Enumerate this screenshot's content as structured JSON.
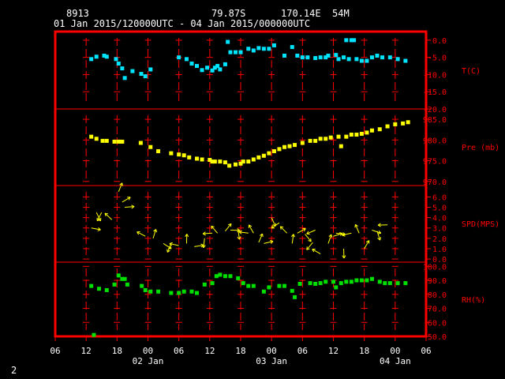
{
  "header": {
    "station": "8913",
    "lat": "79.87S",
    "lon": "170.14E",
    "elev": "54M",
    "time_range": "01 Jan 2015/120000UTC - 04 Jan 2015/000000UTC"
  },
  "page_number": "2",
  "colors": {
    "frame": "#ff0000",
    "text": "#ffffff",
    "temperature": "#00e5ff",
    "pressure": "#ffff00",
    "wind": "#ffff00",
    "humidity": "#00e000"
  },
  "chart_data": {
    "type": "scatter",
    "x_axis": {
      "unit": "hours from 01 Jan 2015 06 UTC",
      "range": [
        0,
        72
      ],
      "ticks": [
        "06",
        "12",
        "18",
        "00",
        "06",
        "12",
        "18",
        "00",
        "06",
        "12",
        "18",
        "00",
        "06"
      ],
      "day_labels": [
        "02 Jan",
        "03 Jan",
        "04 Jan"
      ],
      "grid": true
    },
    "panels": [
      {
        "name": "temperature",
        "label": "T(C)",
        "ylim": [
          -20,
          2.5
        ],
        "yticks": [
          "0.0",
          "-5.0",
          "-10.0",
          "-15.0",
          "-20.0"
        ],
        "ytick_values": [
          0,
          -5,
          -10,
          -15,
          -20
        ],
        "points": [
          [
            7,
            -5.5
          ],
          [
            8,
            -4.8
          ],
          [
            9.5,
            -4.5
          ],
          [
            10,
            -4.8
          ],
          [
            11.8,
            -5.5
          ],
          [
            12.3,
            -6.8
          ],
          [
            13,
            -8.2
          ],
          [
            13.5,
            -11
          ],
          [
            15,
            -9
          ],
          [
            16.7,
            -9.8
          ],
          [
            17.5,
            -10.5
          ],
          [
            18.5,
            -8.5
          ],
          [
            24,
            -5
          ],
          [
            25.5,
            -5.5
          ],
          [
            26.5,
            -6.8
          ],
          [
            27.5,
            -7.5
          ],
          [
            28.5,
            -8.7
          ],
          [
            29.5,
            -8
          ],
          [
            30.5,
            -8.8
          ],
          [
            31,
            -8
          ],
          [
            31.5,
            -7.5
          ],
          [
            32,
            -8.5
          ],
          [
            33,
            -7
          ],
          [
            33.5,
            -0.5
          ],
          [
            34,
            -3.5
          ],
          [
            35,
            -3.5
          ],
          [
            36,
            -3.5
          ],
          [
            37.5,
            -2.5
          ],
          [
            38.5,
            -3
          ],
          [
            39.5,
            -2.3
          ],
          [
            40.5,
            -2.5
          ],
          [
            41.5,
            -2.5
          ],
          [
            42.5,
            -1.5
          ],
          [
            44.5,
            -4.5
          ],
          [
            46,
            -2
          ],
          [
            47,
            -4.5
          ],
          [
            48,
            -5
          ],
          [
            49,
            -5
          ],
          [
            50.5,
            -5.2
          ],
          [
            51.5,
            -5
          ],
          [
            52.5,
            -5
          ],
          [
            53,
            -4.5
          ],
          [
            54.5,
            -4.3
          ],
          [
            55,
            -5.5
          ],
          [
            56,
            -5
          ],
          [
            56.5,
            0
          ],
          [
            57,
            -5.5
          ],
          [
            57.5,
            0
          ],
          [
            58,
            0
          ],
          [
            58.5,
            -5.5
          ],
          [
            59.5,
            -6
          ],
          [
            60.5,
            -6
          ],
          [
            61.5,
            -5
          ],
          [
            62.5,
            -4.5
          ],
          [
            63.5,
            -5
          ],
          [
            65,
            -5
          ],
          [
            66.5,
            -5.5
          ],
          [
            68,
            -6
          ]
        ]
      },
      {
        "name": "pressure",
        "label": "Pre (mb)",
        "ylim": [
          969,
          987.5
        ],
        "yticks": [
          "985.0",
          "980.0",
          "975.0",
          "970.0"
        ],
        "ytick_values": [
          985,
          980,
          975,
          970
        ],
        "points": [
          [
            7,
            980.8
          ],
          [
            8,
            980.3
          ],
          [
            9.2,
            979.8
          ],
          [
            10,
            979.8
          ],
          [
            11.5,
            979.6
          ],
          [
            12.3,
            979.6
          ],
          [
            13,
            979.6
          ],
          [
            16.6,
            979.3
          ],
          [
            18.5,
            978.3
          ],
          [
            20,
            977.3
          ],
          [
            22.5,
            976.8
          ],
          [
            24,
            976.5
          ],
          [
            25,
            976.3
          ],
          [
            26,
            975.8
          ],
          [
            27.5,
            975.5
          ],
          [
            28.5,
            975.3
          ],
          [
            30,
            975.2
          ],
          [
            30.5,
            974.8
          ],
          [
            31,
            974.8
          ],
          [
            32,
            974.8
          ],
          [
            33,
            974.6
          ],
          [
            33.8,
            973.8
          ],
          [
            35,
            974.1
          ],
          [
            36,
            974.3
          ],
          [
            36.5,
            974.8
          ],
          [
            37.5,
            974.8
          ],
          [
            38.5,
            975.3
          ],
          [
            39.5,
            975.8
          ],
          [
            40.5,
            976.2
          ],
          [
            41.5,
            976.8
          ],
          [
            42.5,
            977.3
          ],
          [
            43.5,
            977.8
          ],
          [
            44.5,
            978.3
          ],
          [
            45.5,
            978.5
          ],
          [
            46.5,
            978.8
          ],
          [
            48,
            979.3
          ],
          [
            49.5,
            979.8
          ],
          [
            50.5,
            979.8
          ],
          [
            51.5,
            980.3
          ],
          [
            52.5,
            980.3
          ],
          [
            53.5,
            980.6
          ],
          [
            55,
            980.8
          ],
          [
            55.5,
            978.5
          ],
          [
            56.5,
            980.8
          ],
          [
            57.5,
            981.3
          ],
          [
            58.5,
            981.3
          ],
          [
            59.5,
            981.5
          ],
          [
            60.5,
            981.8
          ],
          [
            61.5,
            982.3
          ],
          [
            63,
            982.6
          ],
          [
            64.5,
            983.3
          ],
          [
            66,
            983.8
          ],
          [
            67.5,
            984.0
          ],
          [
            68.5,
            984.3
          ]
        ]
      },
      {
        "name": "wind",
        "label": "SPD(MPS)",
        "ylim": [
          -0.3,
          7.1
        ],
        "yticks": [
          "6.0",
          "5.0",
          "4.0",
          "3.0",
          "2.0",
          "1.0",
          "0.0"
        ],
        "ytick_values": [
          6,
          5,
          4,
          3,
          2,
          1,
          0
        ],
        "points": [
          [
            7,
            3
          ],
          [
            8,
            4.5
          ],
          [
            9,
            4.5
          ],
          [
            11,
            3.8
          ],
          [
            12.3,
            6.5
          ],
          [
            13,
            5.5
          ],
          [
            13.5,
            5
          ],
          [
            17.5,
            2.2
          ],
          [
            19,
            2
          ],
          [
            21,
            1.5
          ],
          [
            22.5,
            1.5
          ],
          [
            24,
            1.3
          ],
          [
            25.5,
            1.5
          ],
          [
            27,
            1.2
          ],
          [
            29,
            2
          ],
          [
            30.5,
            2.5
          ],
          [
            31.5,
            2.5
          ],
          [
            33,
            2.7
          ],
          [
            34,
            2.8
          ],
          [
            35.5,
            2.8
          ],
          [
            37.5,
            2.5
          ],
          [
            38.5,
            2.5
          ],
          [
            39.5,
            1.6
          ],
          [
            40.5,
            1.5
          ],
          [
            42,
            4
          ],
          [
            43.5,
            3.5
          ],
          [
            45,
            2.5
          ],
          [
            46,
            1.5
          ],
          [
            47,
            2.5
          ],
          [
            48.5,
            2.4
          ],
          [
            50,
            1.6
          ],
          [
            50.5,
            2.8
          ],
          [
            51.5,
            0.5
          ],
          [
            53,
            1.5
          ],
          [
            54,
            2.2
          ],
          [
            54.5,
            2.5
          ],
          [
            56,
            1
          ],
          [
            57.5,
            2.5
          ],
          [
            59,
            2.5
          ],
          [
            60,
            1
          ],
          [
            61.5,
            2.8
          ],
          [
            62.5,
            2.7
          ],
          [
            64.5,
            3.3
          ]
        ],
        "arrows": "wind barbs shown as yellow arrows"
      },
      {
        "name": "humidity",
        "label": "RH(%)",
        "ylim": [
          50,
          103
        ],
        "yticks": [
          "100.0",
          "90.0",
          "80.0",
          "70.0",
          "60.0",
          "50.0"
        ],
        "ytick_values": [
          100,
          90,
          80,
          70,
          60,
          50
        ],
        "points": [
          [
            7.5,
            51
          ],
          [
            7,
            86
          ],
          [
            8.5,
            84
          ],
          [
            10,
            83
          ],
          [
            11.5,
            87
          ],
          [
            12.3,
            93.5
          ],
          [
            13,
            91
          ],
          [
            13.5,
            91
          ],
          [
            14,
            87
          ],
          [
            16.8,
            86
          ],
          [
            17.5,
            83
          ],
          [
            18.5,
            82
          ],
          [
            20,
            82
          ],
          [
            22.5,
            81
          ],
          [
            24,
            81
          ],
          [
            25,
            82
          ],
          [
            26.5,
            82
          ],
          [
            27.5,
            81
          ],
          [
            29,
            87
          ],
          [
            30.5,
            88
          ],
          [
            31.3,
            93
          ],
          [
            32,
            94
          ],
          [
            33,
            93
          ],
          [
            34,
            93
          ],
          [
            35.5,
            91.5
          ],
          [
            36.5,
            88
          ],
          [
            37.5,
            86
          ],
          [
            38.5,
            86
          ],
          [
            40.5,
            82
          ],
          [
            41.5,
            85
          ],
          [
            43.5,
            86
          ],
          [
            44.5,
            86
          ],
          [
            46,
            82.5
          ],
          [
            46.5,
            78
          ],
          [
            47.5,
            87.5
          ],
          [
            49.5,
            88
          ],
          [
            50.5,
            87.5
          ],
          [
            51.5,
            88
          ],
          [
            52.5,
            89
          ],
          [
            54,
            89
          ],
          [
            54.5,
            85
          ],
          [
            55.5,
            88
          ],
          [
            56.5,
            89
          ],
          [
            57.5,
            89
          ],
          [
            58.5,
            90
          ],
          [
            59.5,
            90
          ],
          [
            60.5,
            90
          ],
          [
            61.5,
            91
          ],
          [
            63,
            89
          ],
          [
            64,
            88
          ],
          [
            65,
            88
          ],
          [
            66.5,
            88
          ],
          [
            68,
            88
          ]
        ]
      }
    ]
  }
}
